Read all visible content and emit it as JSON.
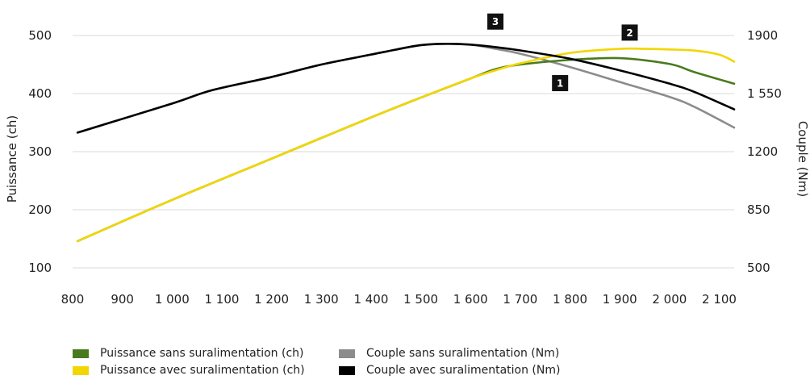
{
  "chart_data": {
    "type": "line",
    "xlabel": "",
    "ylabel_left": "Puissance (ch)",
    "ylabel_right": "Couple (Nm)",
    "xlim": [
      800,
      2130
    ],
    "ylim_left": [
      100,
      500
    ],
    "ylim_right": [
      500,
      1900
    ],
    "x_ticks": [
      800,
      900,
      1000,
      1100,
      1200,
      1300,
      1400,
      1500,
      1600,
      1700,
      1800,
      1900,
      2000,
      2100
    ],
    "x_tick_labels": [
      "800",
      "900",
      "1 000",
      "1 100",
      "1 200",
      "1 300",
      "1 400",
      "1 500",
      "1 600",
      "1 700",
      "1 800",
      "1 900",
      "2 000",
      "2 100"
    ],
    "y_left_ticks": [
      100,
      200,
      300,
      400,
      500
    ],
    "y_right_ticks": [
      500,
      850,
      1200,
      1550,
      1900
    ],
    "y_right_tick_labels": [
      "500",
      "850",
      "1200",
      "1 550",
      "1900"
    ],
    "grid": true,
    "series": [
      {
        "name": "Puissance sans suralimentation (ch)",
        "axis": "left",
        "color": "#4a7a1e",
        "x": [
          810,
          1000,
          1200,
          1400,
          1500,
          1600,
          1650,
          1700,
          1800,
          1900,
          2000,
          2050,
          2130
        ],
        "y": [
          146,
          217,
          288,
          359,
          393,
          426,
          442,
          450,
          458,
          461,
          451,
          437,
          417
        ]
      },
      {
        "name": "Puissance avec suralimentation (ch)",
        "axis": "left",
        "color": "#f2d600",
        "x": [
          810,
          1000,
          1200,
          1400,
          1500,
          1600,
          1650,
          1700,
          1800,
          1900,
          1950,
          2000,
          2050,
          2100,
          2130
        ],
        "y": [
          146,
          217,
          288,
          359,
          393,
          426,
          440,
          452,
          470,
          477,
          477,
          476,
          474,
          467,
          455
        ]
      },
      {
        "name": "Couple sans suralimentation (Nm)",
        "axis": "right",
        "color": "#8c8c8c",
        "x": [
          810,
          1000,
          1080,
          1200,
          1300,
          1400,
          1450,
          1500,
          1550,
          1600,
          1650,
          1700,
          1800,
          1900,
          2000,
          2050,
          2130
        ],
        "y": [
          1315,
          1490,
          1570,
          1650,
          1725,
          1785,
          1815,
          1842,
          1850,
          1845,
          1820,
          1790,
          1710,
          1620,
          1530,
          1470,
          1345
        ]
      },
      {
        "name": "Couple avec suralimentation (Nm)",
        "axis": "right",
        "color": "#000000",
        "x": [
          810,
          1000,
          1080,
          1200,
          1300,
          1400,
          1450,
          1500,
          1550,
          1600,
          1650,
          1700,
          1800,
          1900,
          2000,
          2050,
          2130
        ],
        "y": [
          1315,
          1490,
          1570,
          1650,
          1725,
          1785,
          1815,
          1842,
          1850,
          1845,
          1830,
          1810,
          1760,
          1690,
          1610,
          1560,
          1455
        ]
      }
    ],
    "annotations": [
      {
        "text": "1",
        "x": 1780,
        "y_left": 418
      },
      {
        "text": "2",
        "x": 1920,
        "y_left": 505
      },
      {
        "text": "3",
        "x": 1650,
        "y_left": 524
      }
    ]
  }
}
